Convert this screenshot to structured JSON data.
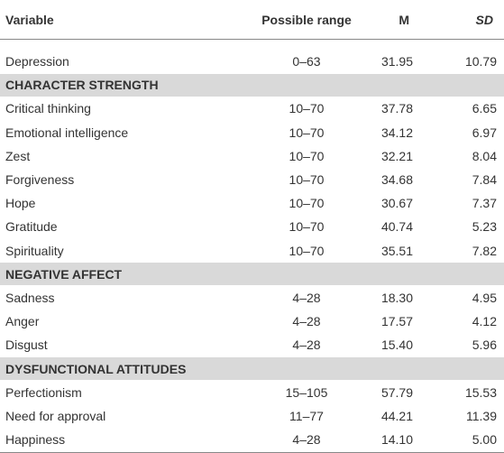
{
  "table": {
    "header": [
      "Variable",
      "Possible range",
      "M",
      "SD"
    ],
    "rows": [
      [
        "Depression",
        "0–63",
        "31.95",
        "10.79"
      ],
      [
        "CHARACTER STRENGTH"
      ],
      [
        "Critical thinking",
        "10–70",
        "37.78",
        "6.65"
      ],
      [
        "Emotional intelligence",
        "10–70",
        "34.12",
        "6.97"
      ],
      [
        "Zest",
        "10–70",
        "32.21",
        "8.04"
      ],
      [
        "Forgiveness",
        "10–70",
        "34.68",
        "7.84"
      ],
      [
        "Hope",
        "10–70",
        "30.67",
        "7.37"
      ],
      [
        "Gratitude",
        "10–70",
        "40.74",
        "5.23"
      ],
      [
        "Spirituality",
        "10–70",
        "35.51",
        "7.82"
      ],
      [
        "NEGATIVE AFFECT"
      ],
      [
        "Sadness",
        "4–28",
        "18.30",
        "4.95"
      ],
      [
        "Anger",
        "4–28",
        "17.57",
        "4.12"
      ],
      [
        "Disgust",
        "4–28",
        "15.40",
        "5.96"
      ],
      [
        "DYSFUNCTIONAL ATTITUDES"
      ],
      [
        "Perfectionism",
        "15–105",
        "57.79",
        "15.53"
      ],
      [
        "Need for approval",
        "11–77",
        "44.21",
        "11.39"
      ],
      [
        "Happiness",
        "4–28",
        "14.10",
        "5.00"
      ]
    ]
  }
}
